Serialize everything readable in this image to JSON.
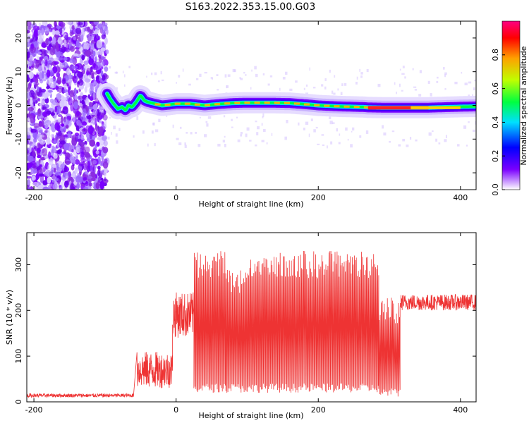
{
  "title": "S163.2022.353.15.00.G03",
  "chart_data": [
    {
      "type": "heatmap",
      "xlabel": "Height of straight line (km)",
      "ylabel": "Frequency (Hz)",
      "xlim": [
        -210,
        422
      ],
      "ylim": [
        -25,
        25
      ],
      "x_ticks": [
        -200,
        0,
        200,
        400
      ],
      "y_ticks": [
        -20,
        -10,
        0,
        10,
        20
      ],
      "noise_region": {
        "x": [
          -210,
          -97
        ],
        "y": [
          -25,
          25
        ]
      },
      "ridge": {
        "x": [
          -97,
          -93,
          -88,
          -82,
          -76,
          -71,
          -67,
          -62,
          -56,
          -50,
          -45,
          -40,
          -30,
          -20,
          -10,
          0,
          20,
          40,
          60,
          80,
          100,
          130,
          160,
          190,
          200,
          230,
          265,
          270,
          300,
          350,
          400,
          422
        ],
        "y": [
          3.5,
          2.0,
          0.5,
          -1.0,
          -0.5,
          -1.5,
          0,
          -0.5,
          1.0,
          3.0,
          1.5,
          1.0,
          0.5,
          0.0,
          0.2,
          0.5,
          0.5,
          0.0,
          0.4,
          0.7,
          0.8,
          0.8,
          0.7,
          0.2,
          0.0,
          -0.3,
          -0.5,
          -0.6,
          -0.7,
          -0.7,
          -0.4,
          -0.3
        ]
      },
      "colorbar": {
        "label": "Normalized spectral amplitude",
        "ticks": [
          0.0,
          0.2,
          0.4,
          0.6,
          0.8
        ],
        "range": [
          0,
          1
        ],
        "colors": [
          "#ffffff",
          "#7a00ff",
          "#0000ff",
          "#00e0ff",
          "#00ff40",
          "#c0ff00",
          "#ffa000",
          "#ff0000",
          "#ff0080"
        ]
      }
    },
    {
      "type": "line",
      "xlabel": "Height of straight line (km)",
      "ylabel": "SNR (10 * v/v)",
      "xlim": [
        -210,
        422
      ],
      "ylim": [
        0,
        370
      ],
      "x_ticks": [
        -200,
        0,
        200,
        400
      ],
      "y_ticks": [
        0,
        100,
        200,
        300
      ],
      "color": "#ee3333",
      "segments": [
        {
          "x0": -210,
          "x1": -60,
          "base": 10,
          "top": 18
        },
        {
          "x0": -55,
          "x1": -5,
          "base": 30,
          "top": 110
        },
        {
          "x0": -5,
          "x1": 25,
          "base": 140,
          "top": 240
        },
        {
          "x0": 25,
          "x1": 70,
          "base": 20,
          "top": 330
        },
        {
          "x0": 70,
          "x1": 100,
          "base": 20,
          "top": 290
        },
        {
          "x0": 100,
          "x1": 285,
          "base": 20,
          "top": 330
        },
        {
          "x0": 285,
          "x1": 315,
          "base": 10,
          "top": 230
        },
        {
          "x0": 315,
          "x1": 422,
          "base": 200,
          "top": 235
        }
      ]
    }
  ]
}
